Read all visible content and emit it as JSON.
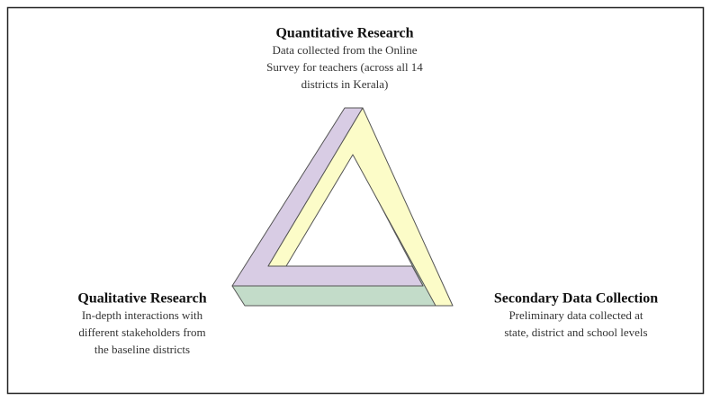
{
  "nodes": [
    {
      "title": "Quantitative Research",
      "lines": [
        "Data collected from the Online",
        "Survey for teachers (across all 14",
        "districts in Kerala)"
      ]
    },
    {
      "title": "Qualitative Research",
      "lines": [
        "In-depth interactions with",
        "different stakeholders from",
        "the baseline districts"
      ]
    },
    {
      "title": "Secondary Data Collection",
      "lines": [
        "Preliminary data collected at",
        "state, district and school levels"
      ]
    }
  ]
}
